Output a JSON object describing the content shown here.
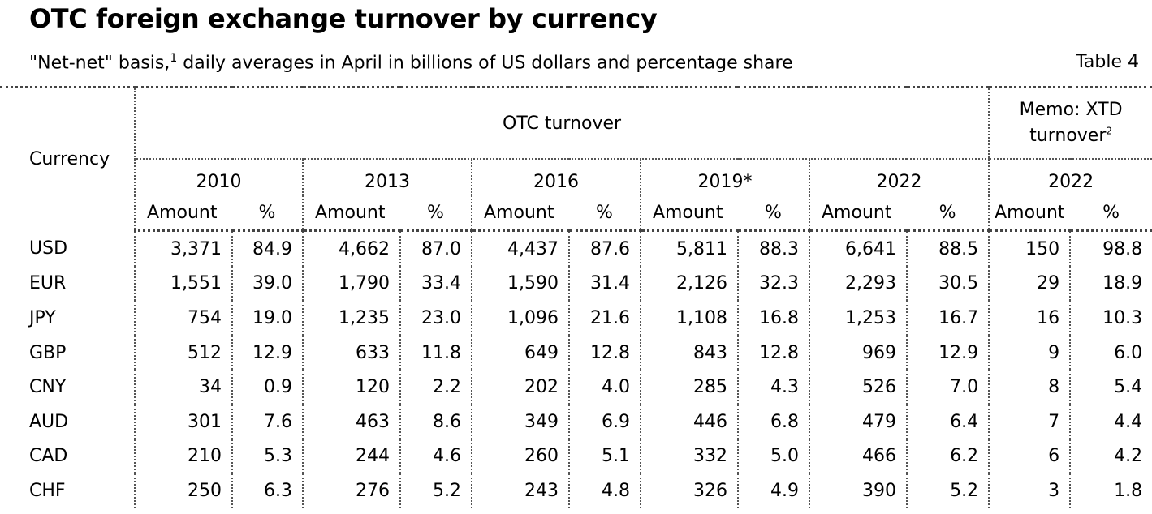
{
  "title": "OTC foreign exchange turnover by currency",
  "subtitle": {
    "text_before": "\"Net-net\" basis,",
    "footnote": "1",
    "text_after": " daily averages in April in billions of US dollars and percentage share"
  },
  "table_label": "Table 4",
  "header": {
    "currency": "Currency",
    "otc_turnover": "OTC turnover",
    "memo_line1": "Memo: XTD",
    "memo_line2": "turnover",
    "memo_footnote": "2",
    "years": [
      "2010",
      "2013",
      "2016",
      "2019*",
      "2022"
    ],
    "memo_year": "2022",
    "amount": "Amount",
    "percent": "%"
  },
  "rows": [
    {
      "currency": "USD",
      "values": [
        "3,371",
        "84.9",
        "4,662",
        "87.0",
        "4,437",
        "87.6",
        "5,811",
        "88.3",
        "6,641",
        "88.5",
        "150",
        "98.8"
      ]
    },
    {
      "currency": "EUR",
      "values": [
        "1,551",
        "39.0",
        "1,790",
        "33.4",
        "1,590",
        "31.4",
        "2,126",
        "32.3",
        "2,293",
        "30.5",
        "29",
        "18.9"
      ]
    },
    {
      "currency": "JPY",
      "values": [
        "754",
        "19.0",
        "1,235",
        "23.0",
        "1,096",
        "21.6",
        "1,108",
        "16.8",
        "1,253",
        "16.7",
        "16",
        "10.3"
      ]
    },
    {
      "currency": "GBP",
      "values": [
        "512",
        "12.9",
        "633",
        "11.8",
        "649",
        "12.8",
        "843",
        "12.8",
        "969",
        "12.9",
        "9",
        "6.0"
      ]
    },
    {
      "currency": "CNY",
      "values": [
        "34",
        "0.9",
        "120",
        "2.2",
        "202",
        "4.0",
        "285",
        "4.3",
        "526",
        "7.0",
        "8",
        "5.4"
      ]
    },
    {
      "currency": "AUD",
      "values": [
        "301",
        "7.6",
        "463",
        "8.6",
        "349",
        "6.9",
        "446",
        "6.8",
        "479",
        "6.4",
        "7",
        "4.4"
      ]
    },
    {
      "currency": "CAD",
      "values": [
        "210",
        "5.3",
        "244",
        "4.6",
        "260",
        "5.1",
        "332",
        "5.0",
        "466",
        "6.2",
        "6",
        "4.2"
      ]
    },
    {
      "currency": "CHF",
      "values": [
        "250",
        "6.3",
        "276",
        "5.2",
        "243",
        "4.8",
        "326",
        "4.9",
        "390",
        "5.2",
        "3",
        "1.8"
      ]
    }
  ]
}
